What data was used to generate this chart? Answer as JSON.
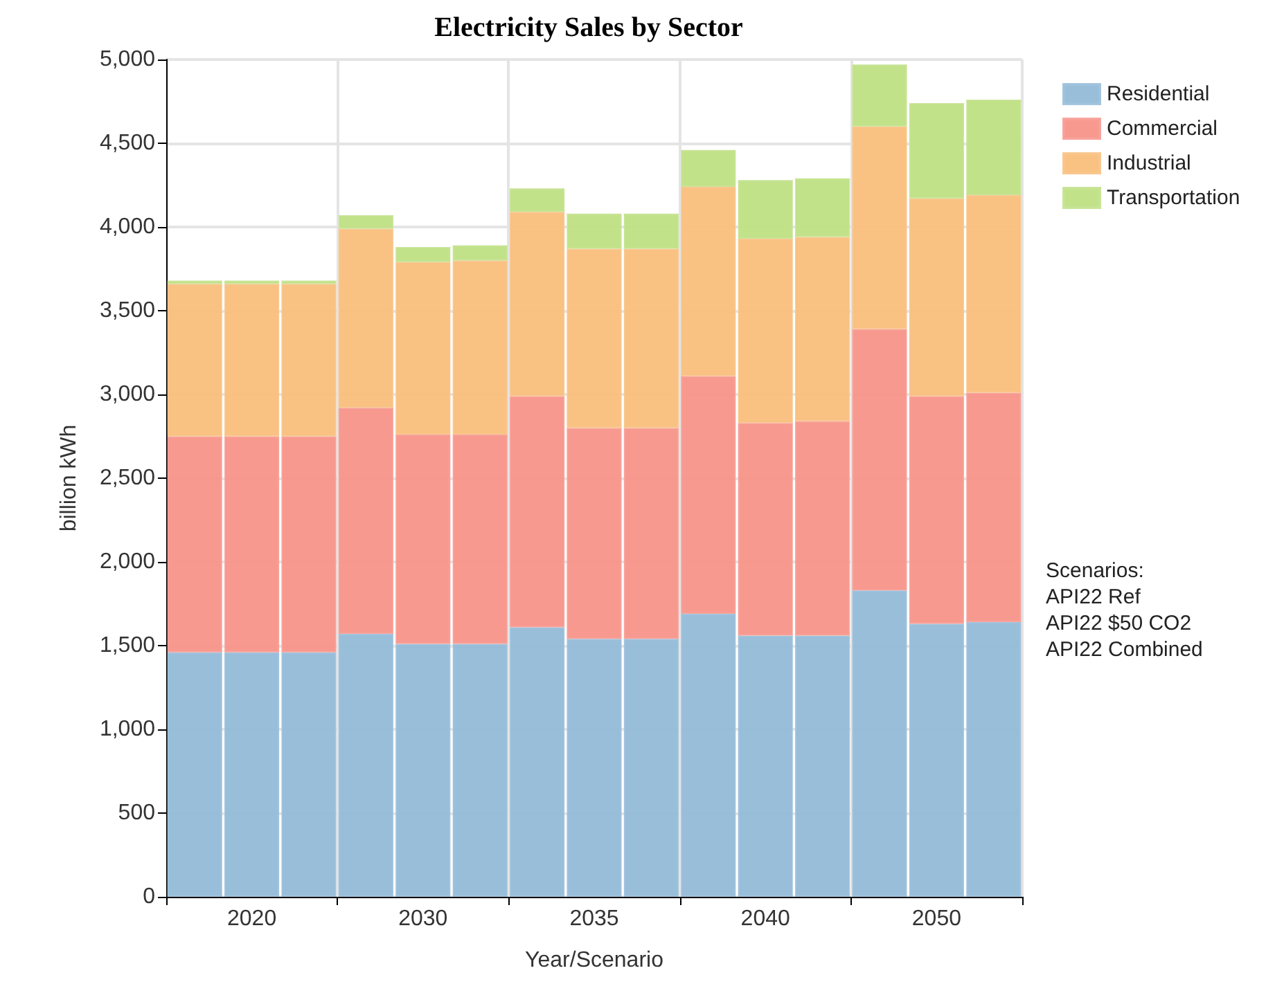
{
  "chart_data": {
    "type": "bar",
    "title": "Electricity Sales by Sector",
    "xlabel": "Year/Scenario",
    "ylabel": "billion kWh",
    "categories": [
      null,
      "2020",
      null,
      null,
      "2030",
      null,
      null,
      "2035",
      null,
      null,
      "2040",
      null,
      null,
      "2050",
      null
    ],
    "stacked": true,
    "series": [
      {
        "name": "Residential",
        "color": "#93bad8",
        "values": [
          1460,
          1460,
          1460,
          1570,
          1510,
          1510,
          1610,
          1540,
          1540,
          1690,
          1560,
          1560,
          1830,
          1630,
          1640
        ]
      },
      {
        "name": "Commercial",
        "color": "#f8948a",
        "values": [
          1290,
          1290,
          1290,
          1350,
          1250,
          1250,
          1380,
          1260,
          1260,
          1420,
          1270,
          1280,
          1560,
          1360,
          1370
        ]
      },
      {
        "name": "Industrial",
        "color": "#f9be7b",
        "values": [
          910,
          910,
          910,
          1070,
          1030,
          1040,
          1100,
          1070,
          1070,
          1130,
          1100,
          1100,
          1210,
          1180,
          1180
        ]
      },
      {
        "name": "Transportation",
        "color": "#bfe084",
        "values": [
          20,
          20,
          20,
          80,
          90,
          90,
          140,
          210,
          210,
          220,
          350,
          350,
          370,
          570,
          570
        ]
      }
    ],
    "ylim": [
      0,
      5000
    ],
    "yticks": [
      0,
      500,
      {
        "value": 1000,
        "label": "1,000"
      },
      {
        "value": 1500,
        "label": "1,500"
      },
      {
        "value": 2000,
        "label": "2,000"
      },
      {
        "value": 2500,
        "label": "2,500"
      },
      {
        "value": 3000,
        "label": "3,000"
      },
      {
        "value": 3500,
        "label": "3,500"
      },
      {
        "value": 4000,
        "label": "4,000"
      },
      {
        "value": 4500,
        "label": "4,500"
      },
      {
        "value": 5000,
        "label": "5,000"
      }
    ],
    "grid": true,
    "legend": "top right",
    "annotations": [
      "Scenarios:",
      "API22 Ref",
      "API22 $50 CO2",
      "API22 Combined"
    ]
  }
}
